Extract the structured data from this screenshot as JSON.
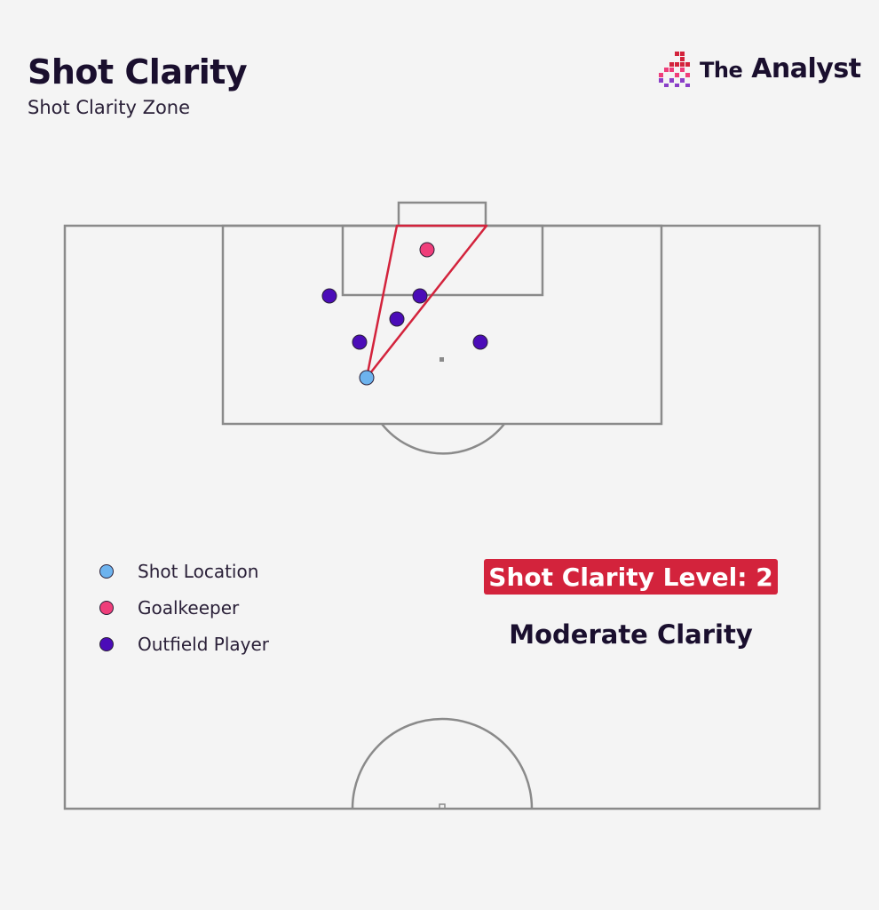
{
  "header": {
    "title": "Shot Clarity",
    "subtitle": "Shot Clarity Zone"
  },
  "brand": {
    "prefix": "The",
    "name": "Analyst",
    "logo_icon": "analyst-bars-logo"
  },
  "colors": {
    "background": "#f4f4f4",
    "pitch_line": "#8a8a8a",
    "shot_cone": "#d3233c",
    "shot_location": "#6db3ee",
    "goalkeeper": "#ef3e7a",
    "outfield_player": "#4b0cb8",
    "badge_bg": "#d3233c",
    "text": "#1a0f2e"
  },
  "legend": {
    "items": [
      {
        "label": "Shot Location",
        "color": "#6db3ee"
      },
      {
        "label": "Goalkeeper",
        "color": "#ef3e7a"
      },
      {
        "label": "Outfield Player",
        "color": "#4b0cb8"
      }
    ]
  },
  "clarity": {
    "level_label": "Shot Clarity Level: 2",
    "level": 2,
    "description": "Moderate Clarity"
  }
}
